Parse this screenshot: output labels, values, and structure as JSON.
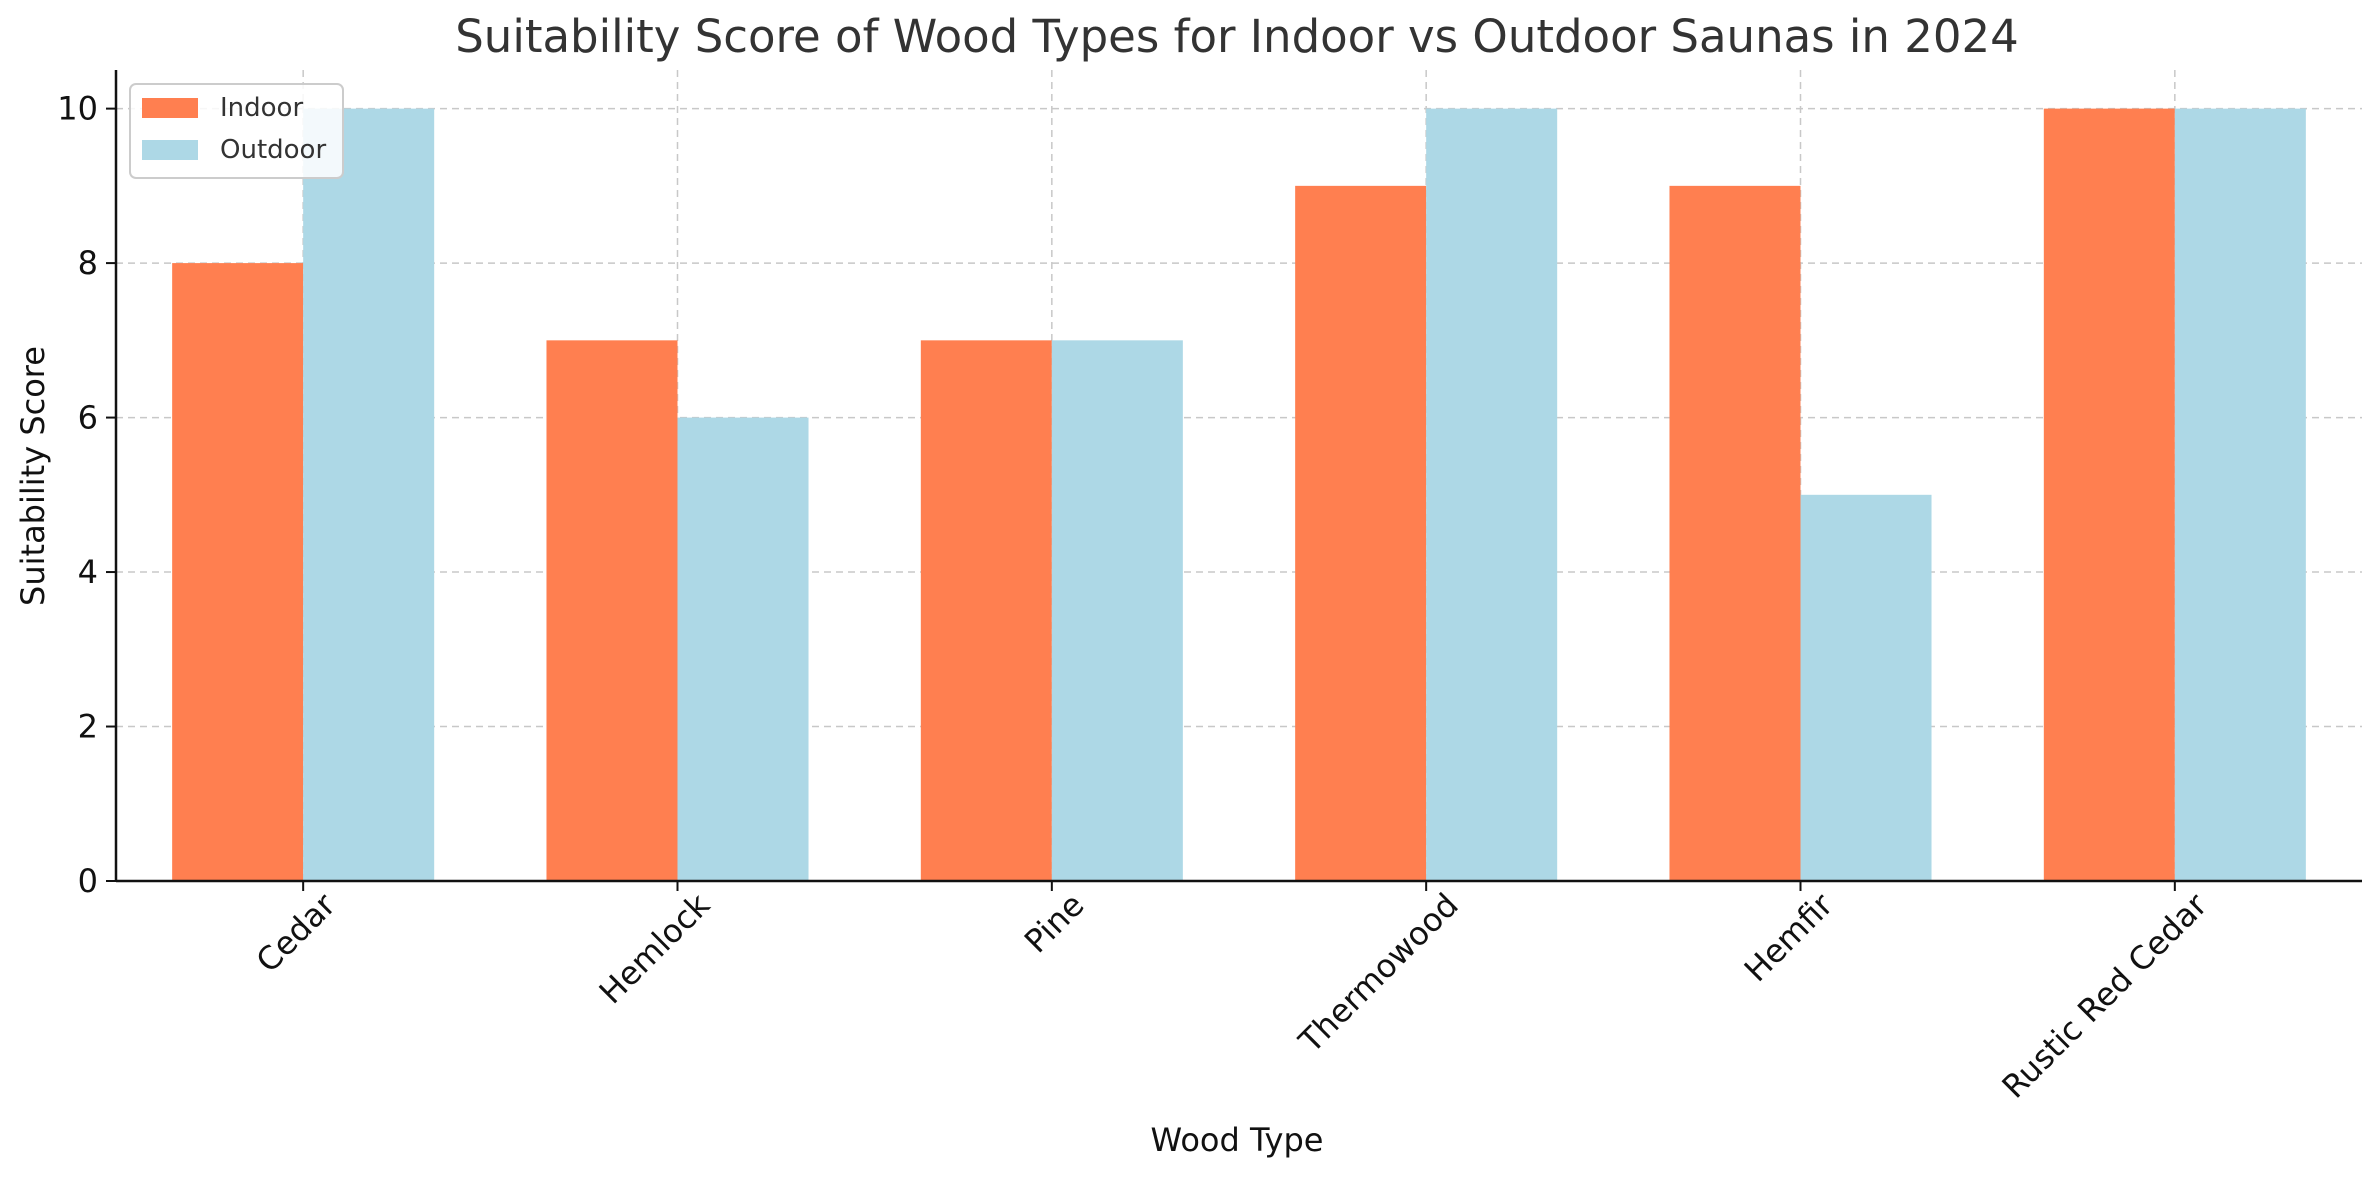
{
  "chart_data": {
    "type": "bar",
    "title": "Suitability Score of Wood Types for Indoor vs Outdoor Saunas in 2024",
    "xlabel": "Wood Type",
    "ylabel": "Suitability Score",
    "categories": [
      "Cedar",
      "Hemlock",
      "Pine",
      "Thermowood",
      "Hemfir",
      "Rustic Red Cedar"
    ],
    "series": [
      {
        "name": "Indoor",
        "values": [
          8,
          7,
          7,
          9,
          9,
          10
        ],
        "color": "#FF7F50"
      },
      {
        "name": "Outdoor",
        "values": [
          10,
          6,
          7,
          10,
          5,
          10
        ],
        "color": "#ADD8E6"
      }
    ],
    "ylim": [
      0,
      10.5
    ],
    "yticks": [
      "0",
      "2",
      "4",
      "6",
      "8",
      "10"
    ],
    "grid": true,
    "legend_position": "top-left"
  }
}
